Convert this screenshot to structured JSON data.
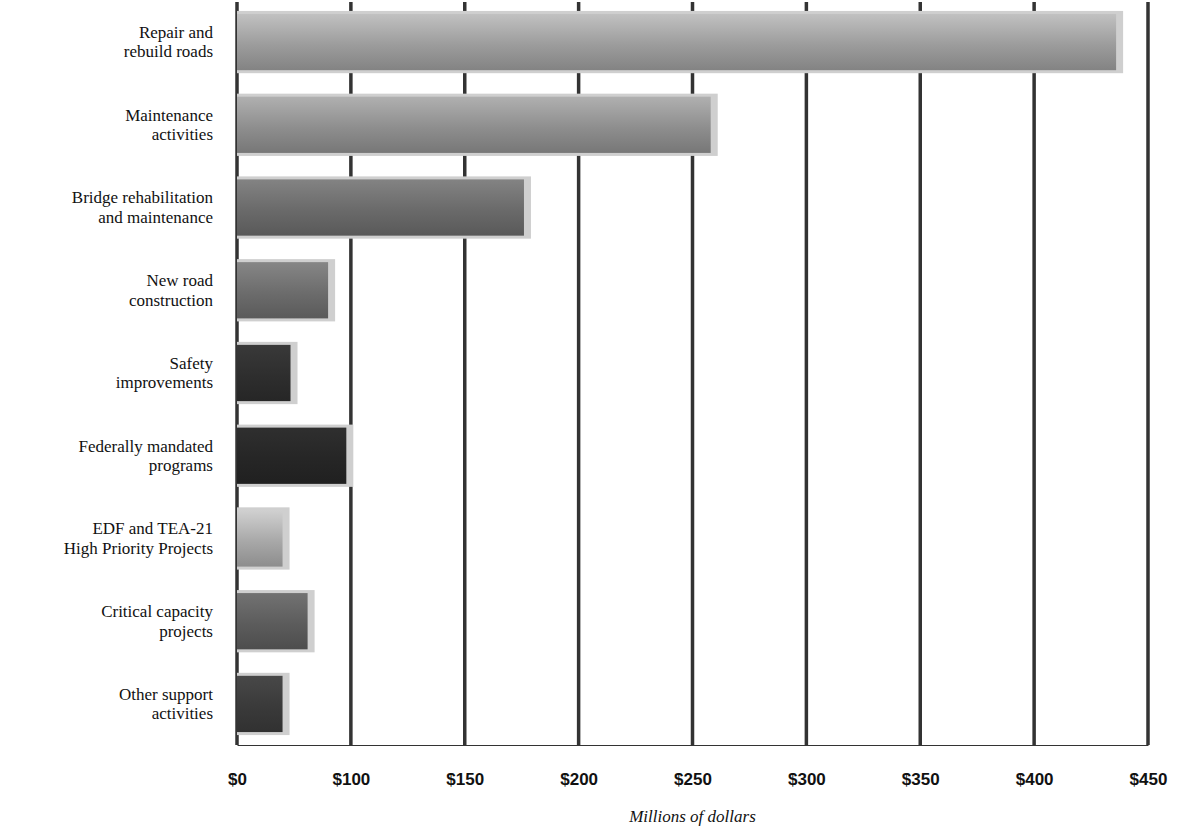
{
  "chart_data": {
    "type": "bar",
    "orientation": "horizontal",
    "categories": [
      "Repair and\nrebuild roads",
      "Maintenance\nactivities",
      "Bridge rehabilitation\nand maintenance",
      "New road\nconstruction",
      "Safety\nimprovements",
      "Federally mandated\nprograms",
      "EDF and TEA-21\nHigh Priority Projects",
      "Critical capacity\nprojects",
      "Other support\nactivities"
    ],
    "values": [
      436,
      258,
      176,
      80,
      47,
      96,
      40,
      62,
      40
    ],
    "colors": [
      "#9c9c9c",
      "#8e8e8e",
      "#6a6a6a",
      "#6c6c6c",
      "#2e2e2e",
      "#262626",
      "#a8a8a8",
      "#5c5c5c",
      "#3a3a3a"
    ],
    "x_label": "Millions of dollars",
    "xlim": [
      0,
      450
    ],
    "xticks": [
      {
        "value": 0,
        "label": "$0"
      },
      {
        "value": 100,
        "label": "$100"
      },
      {
        "value": 150,
        "label": "$150"
      },
      {
        "value": 200,
        "label": "$200"
      },
      {
        "value": 250,
        "label": "$250"
      },
      {
        "value": 300,
        "label": "$300"
      },
      {
        "value": 350,
        "label": "$350"
      },
      {
        "value": 400,
        "label": "$400"
      },
      {
        "value": 450,
        "label": "$450"
      }
    ],
    "grid": true
  }
}
